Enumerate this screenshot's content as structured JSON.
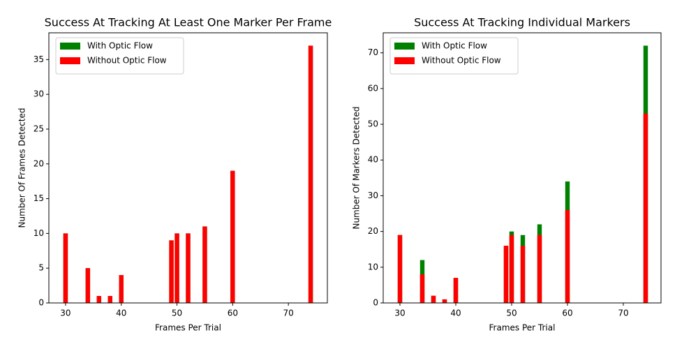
{
  "chart_data": [
    {
      "type": "bar",
      "title": "Success At Tracking At Least One Marker Per Frame",
      "xlabel": "Frames Per Trial",
      "ylabel": "Number Of Frames Detected",
      "x": [
        30,
        34,
        36,
        38,
        40,
        49,
        50,
        52,
        55,
        60,
        74
      ],
      "series": [
        {
          "name": "With Optic Flow",
          "color": "#008000",
          "values": [
            10,
            5,
            1,
            1,
            4,
            9,
            10,
            10,
            11,
            19,
            37
          ]
        },
        {
          "name": "Without Optic Flow",
          "color": "#ff0000",
          "values": [
            10,
            5,
            1,
            1,
            4,
            9,
            10,
            10,
            11,
            19,
            37
          ]
        }
      ],
      "xlim": [
        27,
        77
      ],
      "xticks": [
        30,
        40,
        50,
        60,
        70
      ],
      "ylim": [
        0,
        38.85
      ],
      "yticks": [
        0,
        5,
        10,
        15,
        20,
        25,
        30,
        35
      ],
      "legend": "upper-left"
    },
    {
      "type": "bar",
      "title": "Success At Tracking Individual Markers",
      "xlabel": "Frames Per Trial",
      "ylabel": "Number Of Markers Detected",
      "x": [
        30,
        34,
        36,
        38,
        40,
        49,
        50,
        52,
        55,
        60,
        74
      ],
      "series": [
        {
          "name": "With Optic Flow",
          "color": "#008000",
          "values": [
            19,
            12,
            2,
            1,
            7,
            16,
            20,
            19,
            22,
            34,
            72
          ]
        },
        {
          "name": "Without Optic Flow",
          "color": "#ff0000",
          "values": [
            19,
            8,
            2,
            1,
            7,
            16,
            19,
            16,
            19,
            26,
            53
          ]
        }
      ],
      "xlim": [
        27,
        76.75
      ],
      "xticks": [
        30,
        40,
        50,
        60,
        70
      ],
      "ylim": [
        0,
        75.6
      ],
      "yticks": [
        0,
        10,
        20,
        30,
        40,
        50,
        60,
        70
      ],
      "legend": "upper-left"
    }
  ]
}
